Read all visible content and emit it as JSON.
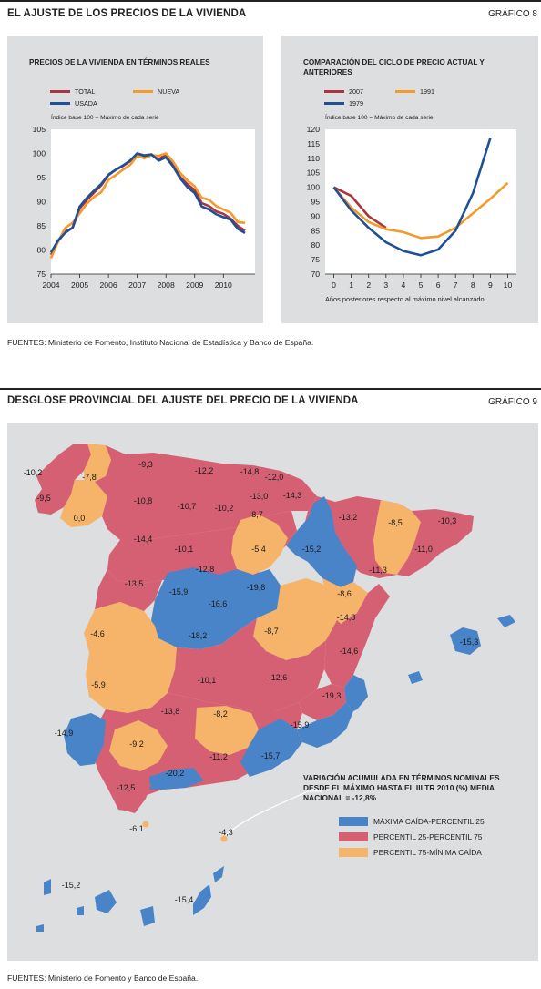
{
  "section8": {
    "title": "EL AJUSTE DE LOS PRECIOS DE LA VIVIENDA",
    "label": "GRÁFICO 8",
    "source": "FUENTES: Ministerio de Fomento, Instituto Nacional de Estadística y Banco de España."
  },
  "section9": {
    "title": "DESGLOSE PROVINCIAL DEL AJUSTE DEL PRECIO DE LA VIVIENDA",
    "label": "GRÁFICO 9",
    "source": "FUENTES: Ministerio de Fomento y Banco de España."
  },
  "colors": {
    "total": "#a8353f",
    "nueva": "#f39a2c",
    "usada": "#1f4f96",
    "c2007": "#a8353f",
    "c1991": "#f39a2c",
    "c1979": "#1f4f96",
    "map_low": "#4a84c8",
    "map_mid": "#d56074",
    "map_high": "#f5b46a",
    "map_sea": "#dcdedf"
  },
  "chart_data": [
    {
      "type": "line",
      "title": "PRECIOS DE LA VIVIENDA EN TÉRMINOS REALES",
      "subtitle": "Índice base 100 = Máximo de cada serie",
      "legend": [
        "TOTAL",
        "NUEVA",
        "USADA"
      ],
      "x_ticks": [
        "2004",
        "2005",
        "2006",
        "2007",
        "2008",
        "2009",
        "2010"
      ],
      "xlim": [
        2004,
        2011.1
      ],
      "ylim": [
        75,
        105
      ],
      "y_ticks": [
        75,
        80,
        85,
        90,
        95,
        100,
        105
      ],
      "series": [
        {
          "name": "TOTAL",
          "color_key": "total",
          "x": [
            2004.0,
            2004.25,
            2004.5,
            2004.75,
            2005.0,
            2005.25,
            2005.5,
            2005.75,
            2006.0,
            2006.25,
            2006.5,
            2006.75,
            2007.0,
            2007.25,
            2007.5,
            2007.75,
            2008.0,
            2008.25,
            2008.5,
            2008.75,
            2009.0,
            2009.25,
            2009.5,
            2009.75,
            2010.0,
            2010.25,
            2010.5,
            2010.75
          ],
          "y": [
            79.0,
            81.8,
            83.8,
            84.6,
            88.6,
            90.4,
            91.9,
            93.4,
            95.5,
            96.6,
            97.4,
            98.4,
            100.0,
            99.6,
            99.8,
            98.8,
            99.8,
            97.6,
            95.1,
            93.6,
            92.4,
            89.7,
            89.1,
            88.0,
            87.5,
            86.5,
            85.0,
            84.0
          ]
        },
        {
          "name": "NUEVA",
          "color_key": "nueva",
          "x": [
            2004.0,
            2004.25,
            2004.5,
            2004.75,
            2005.0,
            2005.25,
            2005.5,
            2005.75,
            2006.0,
            2006.25,
            2006.5,
            2006.75,
            2007.0,
            2007.25,
            2007.5,
            2007.75,
            2008.0,
            2008.25,
            2008.5,
            2008.75,
            2009.0,
            2009.25,
            2009.5,
            2009.75,
            2010.0,
            2010.25,
            2010.5,
            2010.75
          ],
          "y": [
            78.3,
            81.8,
            84.6,
            85.6,
            87.6,
            89.6,
            91.0,
            92.0,
            94.5,
            95.5,
            96.6,
            97.6,
            99.5,
            99.0,
            99.6,
            99.5,
            100.0,
            98.3,
            95.9,
            94.4,
            93.2,
            90.8,
            90.4,
            89.1,
            88.4,
            87.7,
            85.8,
            85.6
          ]
        },
        {
          "name": "USADA",
          "color_key": "usada",
          "x": [
            2004.0,
            2004.25,
            2004.5,
            2004.75,
            2005.0,
            2005.25,
            2005.5,
            2005.75,
            2006.0,
            2006.25,
            2006.5,
            2006.75,
            2007.0,
            2007.25,
            2007.5,
            2007.75,
            2008.0,
            2008.25,
            2008.5,
            2008.75,
            2009.0,
            2009.25,
            2009.5,
            2009.75,
            2010.0,
            2010.25,
            2010.5,
            2010.75
          ],
          "y": [
            79.5,
            82.0,
            83.6,
            84.6,
            89.0,
            90.8,
            92.3,
            93.7,
            95.6,
            96.6,
            97.5,
            98.5,
            100.0,
            99.5,
            99.8,
            98.5,
            99.2,
            97.3,
            94.8,
            93.0,
            91.8,
            89.0,
            88.4,
            87.4,
            86.8,
            86.3,
            84.4,
            83.5
          ]
        }
      ]
    },
    {
      "type": "line",
      "title": "COMPARACIÓN DEL CICLO DE PRECIO ACTUAL Y ANTERIORES",
      "subtitle": "Índice base 100 = Máximo de cada serie",
      "xlabel": "Años posteriores respecto al máximo nivel alcanzado",
      "legend": [
        "2007",
        "1991",
        "1979"
      ],
      "x_ticks": [
        0,
        1,
        2,
        3,
        4,
        5,
        6,
        7,
        8,
        9,
        10
      ],
      "xlim": [
        -0.5,
        10.5
      ],
      "ylim": [
        70,
        120
      ],
      "y_ticks": [
        70,
        75,
        80,
        85,
        90,
        95,
        100,
        105,
        110,
        115,
        120
      ],
      "series": [
        {
          "name": "2007",
          "color_key": "c2007",
          "x": [
            0,
            1,
            2,
            3
          ],
          "y": [
            100.0,
            97.0,
            90.0,
            86.0
          ]
        },
        {
          "name": "1991",
          "color_key": "c1991",
          "x": [
            0,
            1,
            2,
            3,
            4,
            5,
            6,
            7,
            8,
            9,
            10
          ],
          "y": [
            100.0,
            93.0,
            88.0,
            85.5,
            84.5,
            82.5,
            83.0,
            86.0,
            91.0,
            96.0,
            101.5
          ]
        },
        {
          "name": "1979",
          "color_key": "c1979",
          "x": [
            0,
            1,
            2,
            3,
            4,
            5,
            6,
            7,
            8,
            9
          ],
          "y": [
            100.0,
            92.0,
            86.0,
            81.0,
            78.0,
            76.5,
            78.5,
            85.0,
            98.0,
            117.0
          ]
        }
      ]
    }
  ],
  "map": {
    "title": "VARIACIÓN ACUMULADA EN TÉRMINOS NOMINALES DESDE EL MÁXIMO HASTA EL III TR 2010 (%) MEDIA NACIONAL = -12,8%",
    "legend": [
      {
        "label": "MÁXIMA CAÍDA-PERCENTIL 25",
        "color_key": "map_low"
      },
      {
        "label": "PERCENTIL 25-PERCENTIL 75",
        "color_key": "map_mid"
      },
      {
        "label": "PERCENTIL 75-MÍNIMA CAÍDA",
        "color_key": "map_high"
      }
    ],
    "provinces": [
      {
        "value": "-10,2",
        "class": "mid"
      },
      {
        "value": "-7,8",
        "class": "high"
      },
      {
        "value": "-9,3",
        "class": "mid"
      },
      {
        "value": "-12,2",
        "class": "mid"
      },
      {
        "value": "-14,8",
        "class": "mid"
      },
      {
        "value": "-12,0",
        "class": "mid"
      },
      {
        "value": "-9,5",
        "class": "mid"
      },
      {
        "value": "0,0",
        "class": "high"
      },
      {
        "value": "-10,8",
        "class": "mid"
      },
      {
        "value": "-10,7",
        "class": "mid"
      },
      {
        "value": "-10,2",
        "class": "mid"
      },
      {
        "value": "-13,0",
        "class": "mid"
      },
      {
        "value": "-14,3",
        "class": "mid"
      },
      {
        "value": "-8,7",
        "class": "high"
      },
      {
        "value": "-13,2",
        "class": "mid"
      },
      {
        "value": "-8,5",
        "class": "high"
      },
      {
        "value": "-10,3",
        "class": "mid"
      },
      {
        "value": "-14,4",
        "class": "mid"
      },
      {
        "value": "-10,1",
        "class": "mid"
      },
      {
        "value": "-5,4",
        "class": "high"
      },
      {
        "value": "-15,2",
        "class": "low"
      },
      {
        "value": "-11,0",
        "class": "mid"
      },
      {
        "value": "-12,8",
        "class": "mid"
      },
      {
        "value": "-11,3",
        "class": "mid"
      },
      {
        "value": "-13,5",
        "class": "mid"
      },
      {
        "value": "-15,9",
        "class": "low"
      },
      {
        "value": "-16,6",
        "class": "low"
      },
      {
        "value": "-19,8",
        "class": "low"
      },
      {
        "value": "-8,6",
        "class": "high"
      },
      {
        "value": "-4,6",
        "class": "high"
      },
      {
        "value": "-14,8",
        "class": "mid"
      },
      {
        "value": "-18,2",
        "class": "low"
      },
      {
        "value": "-8,7",
        "class": "high"
      },
      {
        "value": "-15,3",
        "class": "low"
      },
      {
        "value": "-14,6",
        "class": "mid"
      },
      {
        "value": "-5,9",
        "class": "high"
      },
      {
        "value": "-10,1",
        "class": "mid"
      },
      {
        "value": "-12,6",
        "class": "mid"
      },
      {
        "value": "-19,3",
        "class": "low"
      },
      {
        "value": "-13,8",
        "class": "mid"
      },
      {
        "value": "-8,2",
        "class": "high"
      },
      {
        "value": "-14,9",
        "class": "low"
      },
      {
        "value": "-15,9",
        "class": "low"
      },
      {
        "value": "-9,2",
        "class": "high"
      },
      {
        "value": "-11,2",
        "class": "mid"
      },
      {
        "value": "-15,7",
        "class": "low"
      },
      {
        "value": "-20,2",
        "class": "low"
      },
      {
        "value": "-12,5",
        "class": "mid"
      },
      {
        "value": "-6,1",
        "class": "high"
      },
      {
        "value": "-4,3",
        "class": "high"
      },
      {
        "value": "-15,2",
        "class": "low"
      },
      {
        "value": "-15,4",
        "class": "low"
      }
    ]
  }
}
